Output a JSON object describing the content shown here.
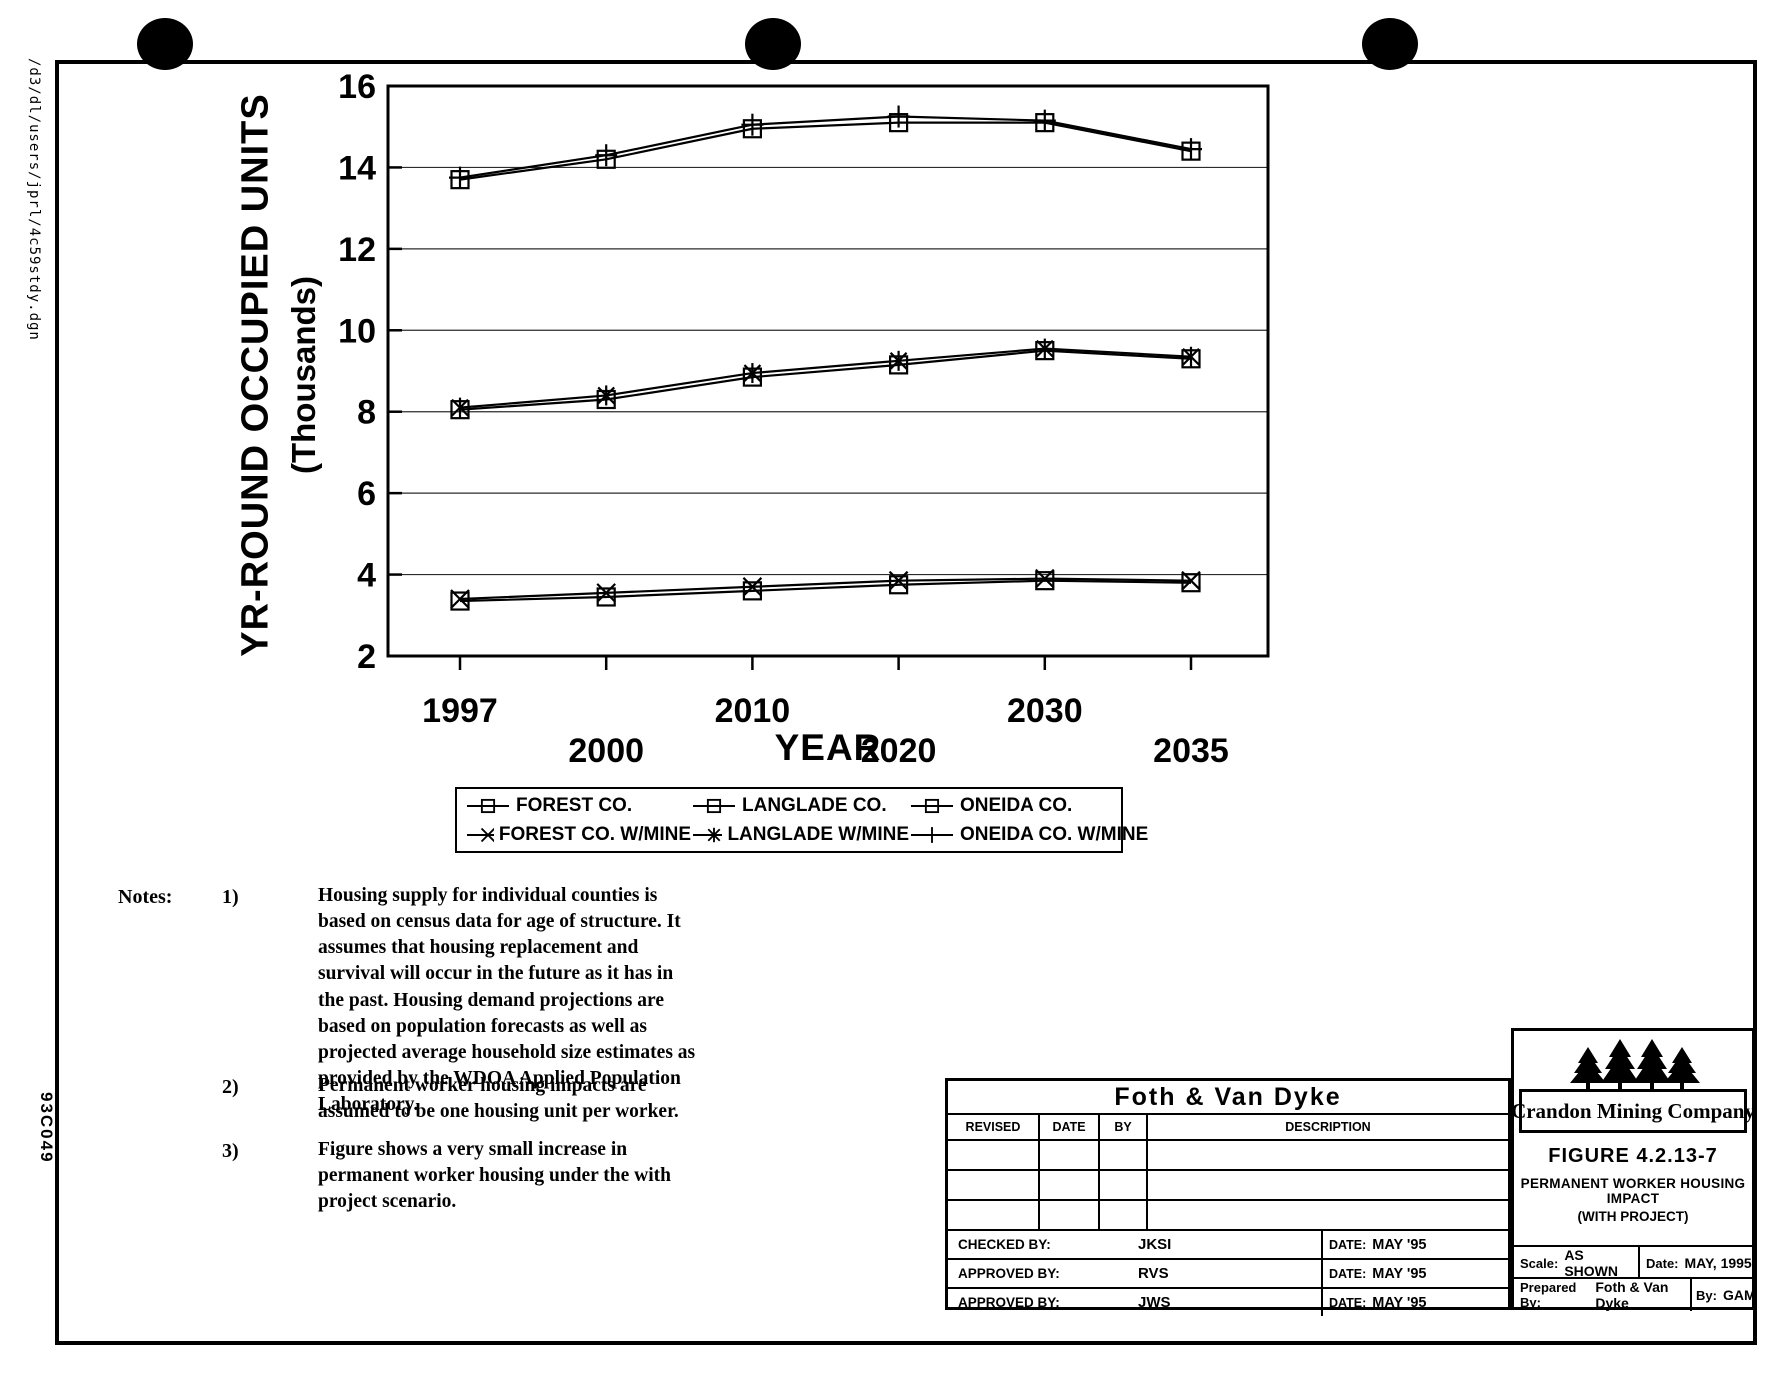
{
  "page": {
    "file_path_label": "/d3/dl/users/jprl/4c59stdy.dgn",
    "doc_number": "93C049"
  },
  "chart_data": {
    "type": "line",
    "title": "",
    "xlabel": "YEAR",
    "ylabel": "YR-ROUND OCCUPIED UNITS",
    "ylabel2": "(Thousands)",
    "ylim": [
      2,
      16
    ],
    "yticks": [
      2,
      4,
      6,
      8,
      10,
      12,
      14,
      16
    ],
    "grid": "horizontal",
    "legend_position": "below",
    "categories": [
      "1997",
      "2000",
      "2010",
      "2020",
      "2030",
      "2035"
    ],
    "series": [
      {
        "name": "FOREST CO.",
        "marker": "square-dash",
        "values": [
          3.35,
          3.45,
          3.6,
          3.75,
          3.85,
          3.8
        ]
      },
      {
        "name": "FOREST CO. W/MINE",
        "marker": "x",
        "values": [
          3.4,
          3.55,
          3.7,
          3.85,
          3.9,
          3.85
        ]
      },
      {
        "name": "LANGLADE CO.",
        "marker": "square-dash",
        "values": [
          8.05,
          8.3,
          8.85,
          9.15,
          9.5,
          9.3
        ]
      },
      {
        "name": "LANGLADE W/MINE",
        "marker": "asterisk",
        "values": [
          8.1,
          8.4,
          8.95,
          9.25,
          9.55,
          9.35
        ]
      },
      {
        "name": "ONEIDA CO.",
        "marker": "square-dash",
        "values": [
          13.7,
          14.2,
          14.95,
          15.1,
          15.1,
          14.4
        ]
      },
      {
        "name": "ONEIDA CO. W/MINE",
        "marker": "plus",
        "values": [
          13.75,
          14.3,
          15.05,
          15.25,
          15.15,
          14.45
        ]
      }
    ],
    "legend_order": [
      0,
      2,
      4,
      1,
      3,
      5
    ]
  },
  "notes": {
    "label": "Notes:",
    "items": [
      {
        "num": "1)",
        "text": "Housing supply for individual counties is based on census data for age of structure.  It assumes that housing replacement and survival will occur in the future as it has in the past.  Housing demand projections are based on population forecasts as well as projected average household size estimates as provided by the WDOA Applied Population Laboratory."
      },
      {
        "num": "2)",
        "text": "Permanent worker housing impacts are assumed to be one housing unit per worker."
      },
      {
        "num": "3)",
        "text": "Figure shows a very small increase in permanent worker housing under the with project scenario."
      }
    ]
  },
  "revision_block": {
    "company": "Foth  &  Van Dyke",
    "columns": [
      "REVISED",
      "DATE",
      "BY",
      "DESCRIPTION"
    ],
    "signoff": [
      {
        "label": "CHECKED BY:",
        "name": "JKSI",
        "date_label": "DATE:",
        "date": "MAY '95"
      },
      {
        "label": "APPROVED BY:",
        "name": "RVS",
        "date_label": "DATE:",
        "date": "MAY '95"
      },
      {
        "label": "APPROVED BY:",
        "name": "JWS",
        "date_label": "DATE:",
        "date": "MAY '95"
      }
    ]
  },
  "title_block": {
    "trees_icon": "evergreen-trees",
    "company": "Crandon Mining Company",
    "figure": "FIGURE  4.2.13-7",
    "title_line1": "PERMANENT  WORKER  HOUSING  IMPACT",
    "title_line2": "(WITH  PROJECT)",
    "scale_label": "Scale:",
    "scale": "AS SHOWN",
    "date_label": "Date:",
    "date": "MAY, 1995",
    "prepared_label": "Prepared By:",
    "prepared": "Foth & Van Dyke",
    "by_label": "By:",
    "by": "GAM"
  }
}
